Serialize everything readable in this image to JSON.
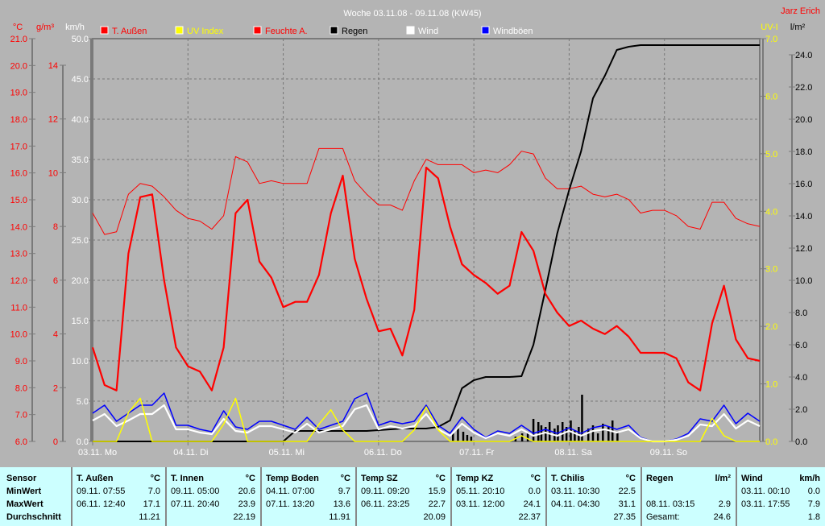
{
  "chart_data": {
    "type": "line",
    "title": "Woche 03.11.08 - 09.11.08 (KW45)",
    "author": "Jarz Erich",
    "grid": true,
    "x": {
      "start": "03.11. 00:00",
      "sample_step_hours": 3,
      "tick_labels": [
        "03.11. Mo",
        "04.11. Di",
        "05.11. Mi",
        "06.11. Do",
        "07.11. Fr",
        "08.11. Sa",
        "09.11. So"
      ],
      "range_days": 7
    },
    "axes": {
      "temp": {
        "unit": "°C",
        "range": [
          6,
          21
        ],
        "step": 1,
        "color": "#ff0000",
        "side": "left"
      },
      "humidity": {
        "unit": "g/m³",
        "range": [
          0,
          14
        ],
        "step": 2,
        "color": "#ff0000",
        "side": "left"
      },
      "wind": {
        "unit": "km/h",
        "range": [
          0,
          50
        ],
        "step": 5,
        "color": "#ffffff",
        "side": "left"
      },
      "uv": {
        "unit": "UV-I",
        "range": [
          0,
          7
        ],
        "step": 1,
        "color": "#ffff00",
        "side": "right"
      },
      "rain": {
        "unit": "l/m²",
        "range": [
          0,
          24
        ],
        "step": 2,
        "color": "#000000",
        "side": "right"
      }
    },
    "legend": "top",
    "series": [
      {
        "name": "T. Außen",
        "axis": "temp",
        "color": "#ff0000",
        "width": 2.2,
        "values": [
          9.5,
          8.1,
          7.9,
          13.0,
          15.1,
          15.2,
          12.0,
          9.5,
          8.8,
          8.6,
          7.9,
          9.5,
          14.5,
          15.0,
          12.7,
          12.1,
          11.0,
          11.2,
          11.2,
          12.2,
          14.5,
          15.9,
          12.8,
          11.3,
          10.1,
          10.2,
          9.2,
          10.9,
          16.2,
          15.8,
          14.0,
          12.6,
          12.2,
          11.9,
          11.5,
          11.8,
          13.8,
          13.1,
          11.5,
          10.8,
          10.3,
          10.5,
          10.2,
          10.0,
          10.3,
          9.9,
          9.3,
          9.3,
          9.3,
          9.1,
          8.2,
          7.9,
          10.4,
          11.8,
          9.8,
          9.1,
          9.0
        ]
      },
      {
        "name": "UV Index",
        "axis": "uv",
        "color": "#ffff00",
        "width": 1.5,
        "values": [
          0,
          0,
          0,
          0.5,
          0.75,
          0,
          0,
          0,
          0,
          0,
          0,
          0.3,
          0.75,
          0,
          0,
          0,
          0,
          0,
          0,
          0.3,
          0.55,
          0.2,
          0,
          0,
          0,
          0,
          0,
          0.2,
          0.6,
          0.2,
          0,
          0,
          0,
          0,
          0,
          0,
          0.1,
          0,
          0,
          0,
          0,
          0,
          0,
          0,
          0,
          0,
          0,
          0,
          0,
          0,
          0,
          0,
          0.4,
          0.1,
          0,
          0,
          0
        ]
      },
      {
        "name": "Feuchte A.",
        "axis": "humidity",
        "color": "#ff0000",
        "width": 1,
        "values": [
          8.5,
          7.7,
          7.8,
          9.2,
          9.6,
          9.5,
          9.1,
          8.6,
          8.3,
          8.2,
          7.9,
          8.4,
          10.6,
          10.4,
          9.6,
          9.7,
          9.6,
          9.6,
          9.6,
          10.9,
          10.9,
          10.9,
          9.7,
          9.2,
          8.8,
          8.8,
          8.6,
          9.7,
          10.5,
          10.3,
          10.3,
          10.3,
          10.0,
          10.1,
          10.0,
          10.3,
          10.8,
          10.7,
          9.8,
          9.4,
          9.4,
          9.5,
          9.2,
          9.1,
          9.2,
          9.0,
          8.5,
          8.6,
          8.6,
          8.4,
          8.0,
          7.9,
          8.9,
          8.9,
          8.3,
          8.1,
          8.0
        ]
      },
      {
        "name": "Regen",
        "axis": "rain",
        "color": "#000000",
        "width": 2,
        "values": [
          0,
          0,
          0,
          0,
          0,
          0,
          0,
          0,
          0,
          0,
          0,
          0,
          0,
          0,
          0,
          0,
          0,
          0.65,
          0.65,
          0.65,
          0.65,
          0.65,
          0.65,
          0.65,
          0.7,
          0.75,
          0.8,
          0.8,
          0.8,
          0.9,
          1.3,
          3.3,
          3.8,
          4.0,
          4.0,
          4.0,
          4.05,
          6.0,
          9.4,
          12.9,
          15.6,
          18.0,
          21.3,
          22.7,
          24.3,
          24.5,
          24.6,
          24.6,
          24.6,
          24.6,
          24.6,
          24.6,
          24.6,
          24.6,
          24.6,
          24.6,
          24.6
        ]
      },
      {
        "name": "Wind",
        "axis": "wind",
        "color": "#ffffff",
        "width": 2.2,
        "values": [
          2.6,
          3.4,
          1.9,
          2.6,
          3.4,
          3.4,
          4.5,
          1.5,
          1.5,
          1.1,
          0.9,
          2.8,
          1.3,
          1.1,
          1.9,
          1.9,
          1.5,
          1.1,
          2.2,
          1.1,
          1.5,
          1.9,
          4.0,
          4.5,
          1.5,
          1.9,
          1.6,
          1.9,
          3.4,
          1.5,
          0.7,
          2.2,
          1.1,
          0.4,
          1.0,
          0.7,
          1.5,
          0.7,
          1.1,
          0.7,
          1.3,
          0.7,
          1.3,
          1.5,
          1.1,
          1.5,
          0.4,
          0,
          0,
          0.2,
          0.7,
          2.1,
          1.9,
          3.4,
          1.6,
          2.6,
          1.9
        ]
      },
      {
        "name": "Windböen",
        "axis": "wind",
        "color": "#0000ff",
        "width": 1.5,
        "values": [
          3.5,
          4.5,
          2.5,
          3.5,
          4.5,
          4.5,
          6.0,
          2.0,
          2.0,
          1.5,
          1.2,
          3.8,
          1.8,
          1.5,
          2.5,
          2.5,
          2.0,
          1.5,
          3.0,
          1.5,
          2.0,
          2.5,
          5.3,
          6.0,
          2.0,
          2.5,
          2.2,
          2.5,
          4.5,
          2.0,
          1.0,
          3.0,
          1.5,
          0.5,
          1.3,
          1.0,
          2.0,
          1.0,
          1.5,
          1.0,
          1.7,
          1.0,
          1.7,
          2.0,
          1.5,
          2.0,
          0.5,
          0,
          0,
          0.3,
          1.0,
          2.8,
          2.5,
          4.5,
          2.2,
          3.5,
          2.5
        ]
      }
    ],
    "rain_bars": {
      "axis": "rain",
      "color": "#000000",
      "points": [
        [
          "06.11. 18:45",
          0.5
        ],
        [
          "06.11. 20:00",
          0.8
        ],
        [
          "06.11. 21:20",
          0.6
        ],
        [
          "06.11. 22:20",
          0.4
        ],
        [
          "06.11. 23:20",
          0.3
        ],
        [
          "07.11. 10:30",
          0.3
        ],
        [
          "07.11. 12:10",
          0.5
        ],
        [
          "07.11. 13:35",
          0.6
        ],
        [
          "07.11. 15:00",
          1.4
        ],
        [
          "07.11. 16:15",
          1.2
        ],
        [
          "07.11. 17:00",
          1.0
        ],
        [
          "07.11. 18:05",
          0.9
        ],
        [
          "07.11. 19:05",
          1.2
        ],
        [
          "07.11. 20:20",
          0.8
        ],
        [
          "07.11. 21:10",
          1.0
        ],
        [
          "07.11. 22:20",
          1.2
        ],
        [
          "07.11. 23:20",
          0.9
        ],
        [
          "08.11. 00:25",
          1.3
        ],
        [
          "08.11. 01:25",
          0.7
        ],
        [
          "08.11. 02:25",
          0.9
        ],
        [
          "08.11. 03:15",
          2.9
        ],
        [
          "08.11. 04:50",
          0.8
        ],
        [
          "08.11. 06:00",
          1.0
        ],
        [
          "08.11. 07:15",
          0.5
        ],
        [
          "08.11. 08:30",
          1.1
        ],
        [
          "08.11. 09:55",
          0.9
        ],
        [
          "08.11. 10:55",
          1.3
        ],
        [
          "08.11. 12:10",
          0.6
        ]
      ]
    }
  },
  "table": {
    "row_labels": [
      "Sensor",
      "MinWert",
      "MaxWert",
      "Durchschnitt"
    ],
    "columns": [
      {
        "name": "T. Außen",
        "unit": "°C",
        "min_time": "09.11.  07:55",
        "min": "7.0",
        "max_time": "06.11.  12:40",
        "max": "17.1",
        "avg": "11.21"
      },
      {
        "name": "T. Innen",
        "unit": "°C",
        "min_time": "09.11.  05:00",
        "min": "20.6",
        "max_time": "07.11.  20:40",
        "max": "23.9",
        "avg": "22.19"
      },
      {
        "name": "Temp Boden",
        "unit": "°C",
        "min_time": "04.11.  07:00",
        "min": "9.7",
        "max_time": "07.11.  13:20",
        "max": "13.6",
        "avg": "11.91"
      },
      {
        "name": "Temp SZ",
        "unit": "°C",
        "min_time": "09.11.  09:20",
        "min": "15.9",
        "max_time": "06.11.  23:25",
        "max": "22.7",
        "avg": "20.09"
      },
      {
        "name": "Temp KZ",
        "unit": "°C",
        "min_time": "05.11.  20:10",
        "min": "0.0",
        "max_time": "03.11.  12:00",
        "max": "24.1",
        "avg": "22.37"
      },
      {
        "name": "T. Chilis",
        "unit": "°C",
        "min_time": "03.11.  10:30",
        "min": "22.5",
        "max_time": "04.11.  04:30",
        "max": "31.1",
        "avg": "27.35"
      },
      {
        "name": "Regen",
        "unit": "l/m²",
        "min_time": "",
        "min": "",
        "max_time": "08.11.  03:15",
        "max": "2.9",
        "avg_label": "Gesamt:",
        "avg": "24.6"
      },
      {
        "name": "Wind",
        "unit": "km/h",
        "min_time": "03.11.  00:10",
        "min": "0.0",
        "max_time": "03.11.  17:55",
        "max": "7.9",
        "avg": "1.8"
      }
    ]
  }
}
